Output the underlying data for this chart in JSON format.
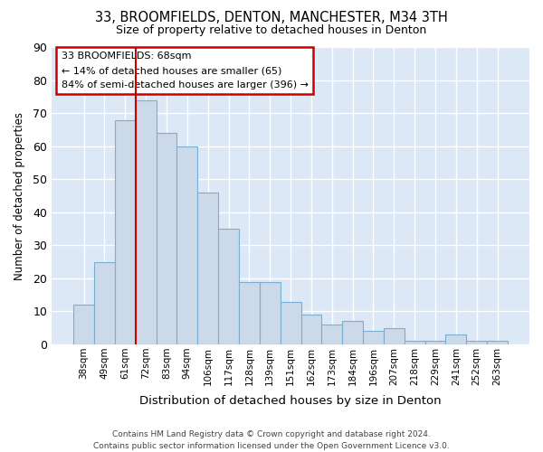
{
  "title_line1": "33, BROOMFIELDS, DENTON, MANCHESTER, M34 3TH",
  "title_line2": "Size of property relative to detached houses in Denton",
  "xlabel": "Distribution of detached houses by size in Denton",
  "ylabel": "Number of detached properties",
  "footer_line1": "Contains HM Land Registry data © Crown copyright and database right 2024.",
  "footer_line2": "Contains public sector information licensed under the Open Government Licence v3.0.",
  "categories": [
    "38sqm",
    "49sqm",
    "61sqm",
    "72sqm",
    "83sqm",
    "94sqm",
    "106sqm",
    "117sqm",
    "128sqm",
    "139sqm",
    "151sqm",
    "162sqm",
    "173sqm",
    "184sqm",
    "196sqm",
    "207sqm",
    "218sqm",
    "229sqm",
    "241sqm",
    "252sqm",
    "263sqm"
  ],
  "values": [
    12,
    25,
    68,
    74,
    64,
    60,
    46,
    35,
    19,
    19,
    13,
    9,
    6,
    7,
    4,
    5,
    1,
    1,
    3,
    1,
    1
  ],
  "bar_color": "#ccd9e8",
  "bar_edge_color": "#7aafd4",
  "background_color": "#dce8f5",
  "grid_color": "#ffffff",
  "red_line_index": 2,
  "annotation_title": "33 BROOMFIELDS: 68sqm",
  "annotation_line1": "← 14% of detached houses are smaller (65)",
  "annotation_line2": "84% of semi-detached houses are larger (396) →",
  "annotation_box_color": "#ffffff",
  "annotation_box_edge_color": "#cc0000",
  "ylim": [
    0,
    90
  ],
  "yticks": [
    0,
    10,
    20,
    30,
    40,
    50,
    60,
    70,
    80,
    90
  ]
}
